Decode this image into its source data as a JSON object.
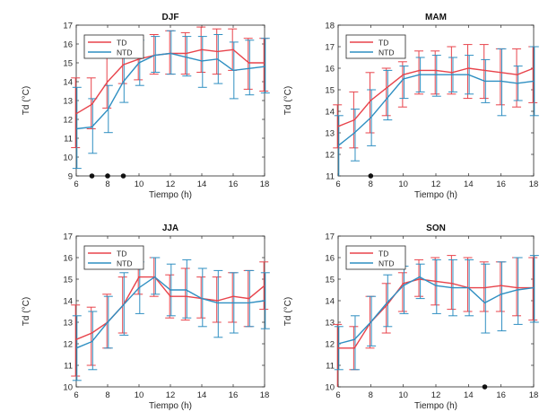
{
  "chart_data": [
    {
      "type": "line",
      "title": "DJF",
      "xlabel": "Tiempo (h)",
      "ylabel": "Td  (°C)",
      "xlim": [
        6,
        18
      ],
      "ylim": [
        9,
        17
      ],
      "xticks": [
        6,
        8,
        10,
        12,
        14,
        16,
        18
      ],
      "yticks": [
        9,
        10,
        11,
        12,
        13,
        14,
        15,
        16,
        17
      ],
      "legend": [
        "TD",
        "NTD"
      ],
      "legend_position": "top-left",
      "markers_x": [
        7,
        8,
        9
      ],
      "x": [
        6,
        7,
        8,
        9,
        10,
        11,
        12,
        13,
        14,
        15,
        16,
        17,
        18
      ],
      "series": [
        {
          "name": "TD",
          "color": "#e8434b",
          "values": [
            12.3,
            12.8,
            14.0,
            14.9,
            15.2,
            15.4,
            15.5,
            15.5,
            15.7,
            15.6,
            15.7,
            15.0,
            15.0
          ],
          "err_low": [
            10.5,
            11.5,
            12.6,
            13.9,
            14.1,
            14.4,
            14.4,
            14.4,
            14.5,
            14.4,
            14.6,
            13.6,
            13.5
          ],
          "err_high": [
            14.2,
            14.2,
            15.5,
            16.0,
            16.3,
            16.5,
            16.7,
            16.6,
            16.9,
            16.8,
            16.8,
            16.3,
            16.3
          ]
        },
        {
          "name": "NTD",
          "color": "#2f8fc2",
          "values": [
            11.5,
            11.6,
            12.5,
            14.0,
            15.0,
            15.4,
            15.5,
            15.3,
            15.1,
            15.2,
            14.6,
            14.7,
            14.8
          ],
          "err_low": [
            9.4,
            10.2,
            11.3,
            12.9,
            13.8,
            14.5,
            14.4,
            14.3,
            13.7,
            13.9,
            13.1,
            13.3,
            13.4
          ],
          "err_high": [
            13.7,
            13.1,
            13.8,
            15.4,
            16.2,
            16.4,
            16.7,
            16.4,
            16.4,
            16.5,
            16.1,
            16.2,
            16.3
          ]
        }
      ]
    },
    {
      "type": "line",
      "title": "MAM",
      "xlabel": "Tiempo (h)",
      "ylabel": "Td  (°C)",
      "xlim": [
        6,
        18
      ],
      "ylim": [
        11,
        18
      ],
      "xticks": [
        6,
        8,
        10,
        12,
        14,
        16,
        18
      ],
      "yticks": [
        11,
        12,
        13,
        14,
        15,
        16,
        17,
        18
      ],
      "legend": [
        "TD",
        "NTD"
      ],
      "legend_position": "top-left",
      "markers_x": [
        8
      ],
      "x": [
        6,
        7,
        8,
        9,
        10,
        11,
        12,
        13,
        14,
        15,
        16,
        17,
        18
      ],
      "series": [
        {
          "name": "TD",
          "color": "#e8434b",
          "values": [
            13.3,
            13.6,
            14.5,
            15.1,
            15.7,
            15.9,
            15.9,
            15.8,
            16.0,
            15.9,
            15.8,
            15.7,
            16.0
          ],
          "err_low": [
            12.3,
            12.3,
            13.0,
            13.8,
            14.2,
            14.8,
            14.8,
            14.8,
            14.6,
            14.6,
            14.3,
            14.2,
            14.4
          ],
          "err_high": [
            14.3,
            14.9,
            15.8,
            16.0,
            16.3,
            16.8,
            16.8,
            17.0,
            17.1,
            17.1,
            16.9,
            16.9,
            17.0
          ]
        },
        {
          "name": "NTD",
          "color": "#2f8fc2",
          "values": [
            12.4,
            13.0,
            13.7,
            14.6,
            15.5,
            15.7,
            15.7,
            15.7,
            15.7,
            15.4,
            15.4,
            15.3,
            15.4
          ],
          "err_low": [
            11.0,
            11.7,
            12.4,
            13.6,
            14.6,
            14.9,
            14.7,
            14.9,
            14.8,
            14.4,
            13.8,
            14.5,
            13.8
          ],
          "err_high": [
            13.8,
            14.1,
            15.0,
            15.9,
            16.1,
            16.5,
            16.6,
            16.5,
            16.6,
            16.4,
            16.9,
            16.1,
            17.0
          ]
        }
      ]
    },
    {
      "type": "line",
      "title": "JJA",
      "xlabel": "Tiempo (h)",
      "ylabel": "Td  (°C)",
      "xlim": [
        6,
        18
      ],
      "ylim": [
        10,
        17
      ],
      "xticks": [
        6,
        8,
        10,
        12,
        14,
        16,
        18
      ],
      "yticks": [
        10,
        11,
        12,
        13,
        14,
        15,
        16,
        17
      ],
      "legend": [
        "TD",
        "NTD"
      ],
      "legend_position": "top-left",
      "markers_x": [],
      "x": [
        6,
        7,
        8,
        9,
        10,
        11,
        12,
        13,
        14,
        15,
        16,
        17,
        18
      ],
      "series": [
        {
          "name": "TD",
          "color": "#e8434b",
          "values": [
            12.2,
            12.5,
            13.0,
            13.8,
            15.1,
            15.1,
            14.2,
            14.2,
            14.1,
            14.0,
            14.2,
            14.1,
            14.7
          ],
          "err_low": [
            10.5,
            11.0,
            11.8,
            12.5,
            14.3,
            14.2,
            13.2,
            13.1,
            13.2,
            13.0,
            13.0,
            12.8,
            13.6
          ],
          "err_high": [
            13.8,
            13.7,
            14.3,
            15.1,
            15.8,
            16.0,
            15.2,
            15.5,
            15.1,
            15.1,
            15.3,
            15.4,
            15.8
          ]
        },
        {
          "name": "NTD",
          "color": "#2f8fc2",
          "values": [
            11.8,
            12.1,
            13.0,
            13.8,
            14.6,
            15.1,
            14.5,
            14.5,
            14.1,
            13.9,
            13.9,
            13.9,
            14.0
          ],
          "err_low": [
            10.3,
            10.8,
            11.8,
            12.4,
            13.4,
            14.3,
            13.3,
            13.2,
            12.8,
            12.3,
            12.5,
            12.8,
            12.7
          ],
          "err_high": [
            13.3,
            13.5,
            14.2,
            15.3,
            15.8,
            16.0,
            15.7,
            15.9,
            15.5,
            15.4,
            15.3,
            15.4,
            15.3
          ]
        }
      ]
    },
    {
      "type": "line",
      "title": "SON",
      "xlabel": "Tiempo (h)",
      "ylabel": "Td  (°C)",
      "xlim": [
        6,
        18
      ],
      "ylim": [
        10,
        17
      ],
      "xticks": [
        6,
        8,
        10,
        12,
        14,
        16,
        18
      ],
      "yticks": [
        10,
        11,
        12,
        13,
        14,
        15,
        16,
        17
      ],
      "legend": [
        "TD",
        "NTD"
      ],
      "legend_position": "top-left",
      "markers_x": [
        15
      ],
      "x": [
        6,
        7,
        8,
        9,
        10,
        11,
        12,
        13,
        14,
        15,
        16,
        17,
        18
      ],
      "series": [
        {
          "name": "TD",
          "color": "#e8434b",
          "values": [
            11.8,
            11.8,
            13.0,
            13.8,
            14.8,
            15.0,
            14.9,
            14.8,
            14.6,
            14.6,
            14.7,
            14.6,
            14.6
          ],
          "err_low": [
            10.0,
            10.8,
            11.8,
            12.5,
            13.5,
            14.2,
            13.8,
            13.6,
            13.5,
            13.5,
            13.5,
            13.3,
            13.1
          ],
          "err_high": [
            12.9,
            12.8,
            14.2,
            14.8,
            15.3,
            15.9,
            16.0,
            16.1,
            16.0,
            15.8,
            15.8,
            16.0,
            16.0
          ]
        },
        {
          "name": "NTD",
          "color": "#2f8fc2",
          "values": [
            12.0,
            12.2,
            13.0,
            13.9,
            14.7,
            15.1,
            14.7,
            14.6,
            14.6,
            13.9,
            14.3,
            14.5,
            14.6
          ],
          "err_low": [
            10.8,
            10.8,
            11.9,
            12.8,
            13.4,
            14.1,
            13.4,
            13.3,
            13.3,
            12.5,
            12.6,
            12.9,
            13.0
          ],
          "err_high": [
            12.8,
            13.3,
            14.2,
            15.2,
            15.6,
            15.7,
            15.9,
            15.9,
            15.9,
            15.7,
            15.8,
            16.0,
            16.1
          ]
        }
      ]
    }
  ]
}
